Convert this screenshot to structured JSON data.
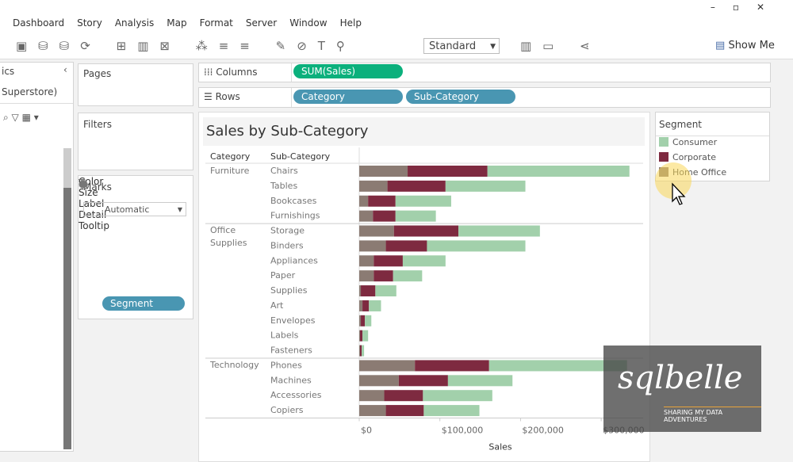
{
  "menu": [
    "Dashboard",
    "Story",
    "Analysis",
    "Map",
    "Format",
    "Server",
    "Window",
    "Help"
  ],
  "toolbar": {
    "fit": "Standard",
    "show_me": "Show Me"
  },
  "data_pane": {
    "title": "ics",
    "source": "Superstore)"
  },
  "cards": {
    "pages": "Pages",
    "filters": "Filters",
    "marks": "Marks",
    "mark_type": "Automatic",
    "buttons": [
      "Color",
      "Size",
      "Label",
      "Detail",
      "Tooltip"
    ],
    "color_pill": "Segment"
  },
  "shelves": {
    "columns": "Columns",
    "column_pills": [
      "SUM(Sales)"
    ],
    "rows": "Rows",
    "row_pills": [
      "Category",
      "Sub-Category"
    ]
  },
  "chart_data": {
    "type": "bar",
    "orientation": "horizontal",
    "stacked": true,
    "title": "Sales by Sub-Category",
    "row_headers": [
      "Category",
      "Sub-Category"
    ],
    "xlabel": "Sales",
    "groups": [
      {
        "name": "Furniture",
        "categories": [
          "Chairs",
          "Tables",
          "Bookcases",
          "Furnishings"
        ]
      },
      {
        "name": "Office Supplies",
        "categories": [
          "Storage",
          "Binders",
          "Appliances",
          "Paper",
          "Supplies",
          "Art",
          "Envelopes",
          "Labels",
          "Fasteners"
        ]
      },
      {
        "name": "Technology",
        "categories": [
          "Phones",
          "Machines",
          "Accessories",
          "Copiers"
        ]
      }
    ],
    "series": [
      {
        "name": "Home Office",
        "color": "#8b7b73",
        "values": [
          60000,
          35000,
          11000,
          17000,
          43000,
          33000,
          18000,
          18000,
          2000,
          4000,
          2000,
          1000,
          1000,
          69000,
          49000,
          31000,
          33000
        ]
      },
      {
        "name": "Corporate",
        "color": "#7e2a40",
        "values": [
          99000,
          72000,
          34000,
          28000,
          80000,
          51000,
          36000,
          24000,
          18000,
          8000,
          5000,
          3000,
          2000,
          92000,
          61000,
          48000,
          47000
        ]
      },
      {
        "name": "Consumer",
        "color": "#a2d0ab",
        "values": [
          176000,
          99000,
          69000,
          50000,
          101000,
          122000,
          53000,
          36000,
          26000,
          15000,
          8000,
          7000,
          3000,
          171000,
          80000,
          86000,
          69000
        ]
      }
    ],
    "xlim": [
      0,
      350000
    ],
    "xticks": [
      {
        "value": 0,
        "label": "$0"
      },
      {
        "value": 100000,
        "label": "$100,000"
      },
      {
        "value": 200000,
        "label": "$200,000"
      },
      {
        "value": 300000,
        "label": "$300,000"
      }
    ],
    "legend": {
      "title": "Segment",
      "entries": [
        "Consumer",
        "Corporate",
        "Home Office"
      ],
      "position": "right"
    }
  },
  "watermark": {
    "name": "sqlbelle",
    "tagline": "SHARING MY DATA ADVENTURES"
  }
}
